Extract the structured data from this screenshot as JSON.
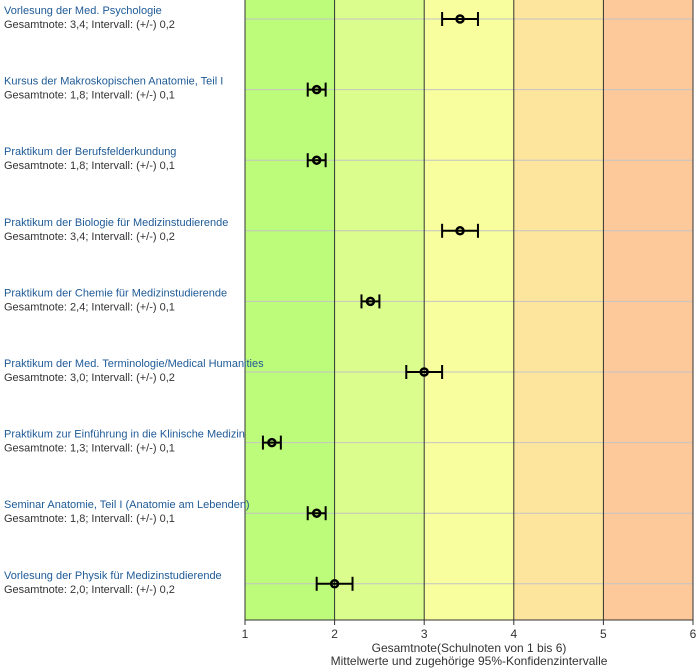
{
  "chart_data": {
    "type": "scatter",
    "subtype": "errorbar-dotplot",
    "xlabel": "Gesamtnote(Schulnoten von 1 bis 6)",
    "xlabel2": "Mittelwerte und zugehörige 95%-Konfidenzintervalle",
    "xlim": [
      1,
      6
    ],
    "xticks": [
      "1",
      "2",
      "3",
      "4",
      "5",
      "6"
    ],
    "bands": [
      {
        "from": 1,
        "to": 2,
        "color": "#bdfc7a"
      },
      {
        "from": 2,
        "to": 3,
        "color": "#dbfd8d"
      },
      {
        "from": 3,
        "to": 4,
        "color": "#f8fe9e"
      },
      {
        "from": 4,
        "to": 5,
        "color": "#fee59e"
      },
      {
        "from": 5,
        "to": 6,
        "color": "#fdc89a"
      }
    ],
    "items": [
      {
        "name": "Vorlesung der Med. Psychologie",
        "summary": "Gesamtnote: 3,4;  Intervall: (+/-) 0,2",
        "mean": 3.4,
        "ci": 0.2
      },
      {
        "name": "Kursus der Makroskopischen Anatomie, Teil I",
        "summary": "Gesamtnote: 1,8;  Intervall: (+/-) 0,1",
        "mean": 1.8,
        "ci": 0.1
      },
      {
        "name": "Praktikum der Berufsfelderkundung",
        "summary": "Gesamtnote: 1,8;  Intervall: (+/-) 0,1",
        "mean": 1.8,
        "ci": 0.1
      },
      {
        "name": "Praktikum der Biologie für Medizinstudierende",
        "summary": "Gesamtnote: 3,4;  Intervall: (+/-) 0,2",
        "mean": 3.4,
        "ci": 0.2
      },
      {
        "name": "Praktikum der Chemie für Medizinstudierende",
        "summary": "Gesamtnote: 2,4;  Intervall: (+/-) 0,1",
        "mean": 2.4,
        "ci": 0.1
      },
      {
        "name": "Praktikum der Med. Terminologie/Medical Humanities",
        "summary": "Gesamtnote: 3,0;  Intervall: (+/-) 0,2",
        "mean": 3.0,
        "ci": 0.2
      },
      {
        "name": "Praktikum zur Einführung in die Klinische Medizin",
        "summary": "Gesamtnote: 1,3;  Intervall: (+/-) 0,1",
        "mean": 1.3,
        "ci": 0.1
      },
      {
        "name": "Seminar Anatomie, Teil I (Anatomie am Lebenden)",
        "summary": "Gesamtnote: 1,8;  Intervall: (+/-) 0,1",
        "mean": 1.8,
        "ci": 0.1
      },
      {
        "name": "Vorlesung der Physik für Medizinstudierende",
        "summary": "Gesamtnote: 2,0;  Intervall: (+/-) 0,2",
        "mean": 2.0,
        "ci": 0.2
      }
    ]
  }
}
